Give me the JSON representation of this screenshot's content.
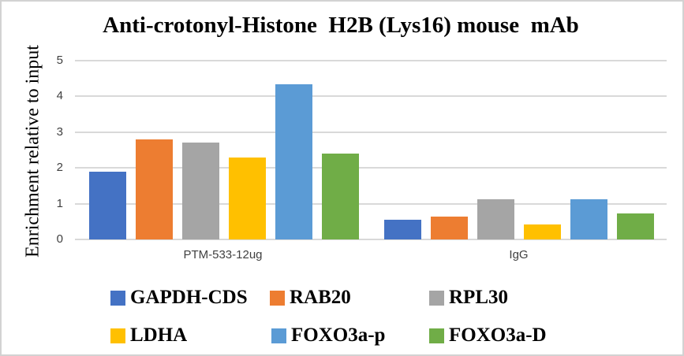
{
  "chart_data": {
    "type": "bar",
    "title": "Anti-crotonyl-Histone  H2B (Lys16) mouse  mAb",
    "ylabel": "Enrichment relative to input",
    "xlabel": "",
    "categories": [
      "PTM-533-12ug",
      "IgG"
    ],
    "y_ticks": [
      0,
      1,
      2,
      3,
      4,
      5
    ],
    "ylim": [
      0,
      5
    ],
    "grid": true,
    "legend_position": "bottom",
    "gridline_color": "#D9D9D9",
    "axis_text_color": "#404040",
    "series": [
      {
        "name": "GAPDH-CDS",
        "color": "#4472C4",
        "values": [
          1.9,
          0.55
        ]
      },
      {
        "name": "RAB20",
        "color": "#ED7D31",
        "values": [
          2.8,
          0.65
        ]
      },
      {
        "name": "RPL30",
        "color": "#A5A5A5",
        "values": [
          2.7,
          1.13
        ]
      },
      {
        "name": "LDHA",
        "color": "#FFC000",
        "values": [
          2.3,
          0.42
        ]
      },
      {
        "name": "FOXO3a-p",
        "color": "#5B9BD5",
        "values": [
          4.35,
          1.13
        ]
      },
      {
        "name": "FOXO3a-D",
        "color": "#70AD47",
        "values": [
          2.4,
          0.73
        ]
      }
    ]
  }
}
